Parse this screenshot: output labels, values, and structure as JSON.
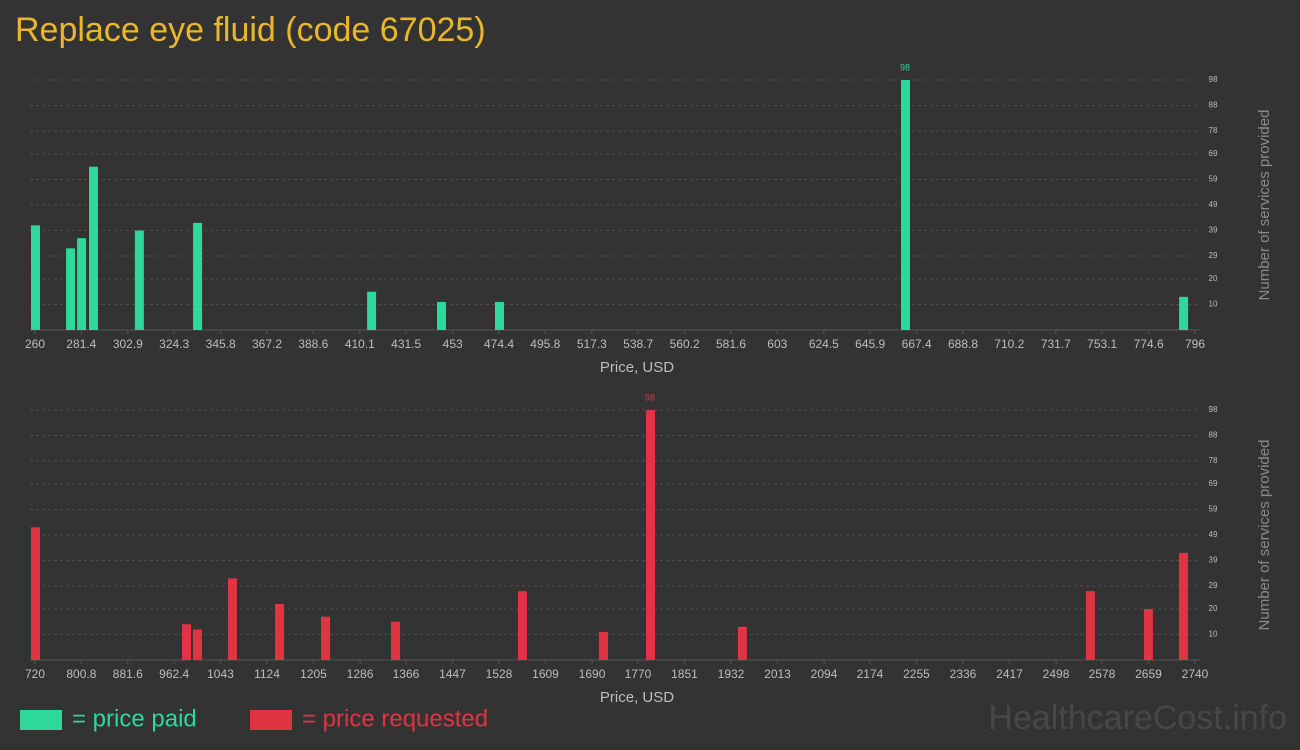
{
  "title": "Replace eye fluid (code 67025)",
  "watermark": "HealthcareCost.info",
  "chart_data": [
    {
      "type": "bar",
      "name": "= price paid",
      "color": "#2ed89b",
      "xlabel": "Price, USD",
      "ylabel": "Number of services provided",
      "x": [
        260,
        276.2,
        281.3,
        286.8,
        308,
        334.9,
        415.3,
        447.6,
        474.4,
        662,
        790.5
      ],
      "values": [
        41,
        32,
        36,
        64,
        39,
        42,
        15,
        11,
        11,
        98,
        13
      ],
      "label_max": true,
      "xlim": [
        260,
        796
      ],
      "xticks": [
        260,
        281.4,
        302.9,
        324.3,
        345.8,
        367.2,
        388.6,
        410.1,
        431.5,
        453,
        474.4,
        495.8,
        517.3,
        538.7,
        560.2,
        581.6,
        603,
        624.5,
        645.9,
        667.4,
        688.8,
        710.2,
        731.7,
        753.1,
        774.6,
        796
      ],
      "ylim": [
        0,
        98
      ],
      "yticks": [
        10,
        20,
        29,
        39,
        49,
        59,
        69,
        78,
        88,
        98
      ],
      "grid": true
    },
    {
      "type": "bar",
      "name": "= price requested",
      "color": "#e03443",
      "xlabel": "Price, USD",
      "ylabel": "Number of services provided",
      "x": [
        720,
        983,
        1002,
        1063,
        1145,
        1225,
        1347,
        1568,
        1709,
        1791,
        1951,
        2557,
        2658,
        2719
      ],
      "values": [
        52,
        14,
        12,
        32,
        22,
        17,
        15,
        27,
        11,
        98,
        13,
        27,
        20,
        42
      ],
      "label_max": true,
      "xlim": [
        720,
        2740
      ],
      "xticks": [
        720,
        800.8,
        881.6,
        962.4,
        1043,
        1124,
        1205,
        1286,
        1366,
        1447,
        1528,
        1609,
        1690,
        1770,
        1851,
        1932,
        2013,
        2094,
        2174,
        2255,
        2336,
        2417,
        2498,
        2578,
        2659,
        2740
      ],
      "ylim": [
        0,
        98
      ],
      "yticks": [
        10,
        20,
        29,
        39,
        49,
        59,
        69,
        78,
        88,
        98
      ],
      "grid": true
    }
  ]
}
